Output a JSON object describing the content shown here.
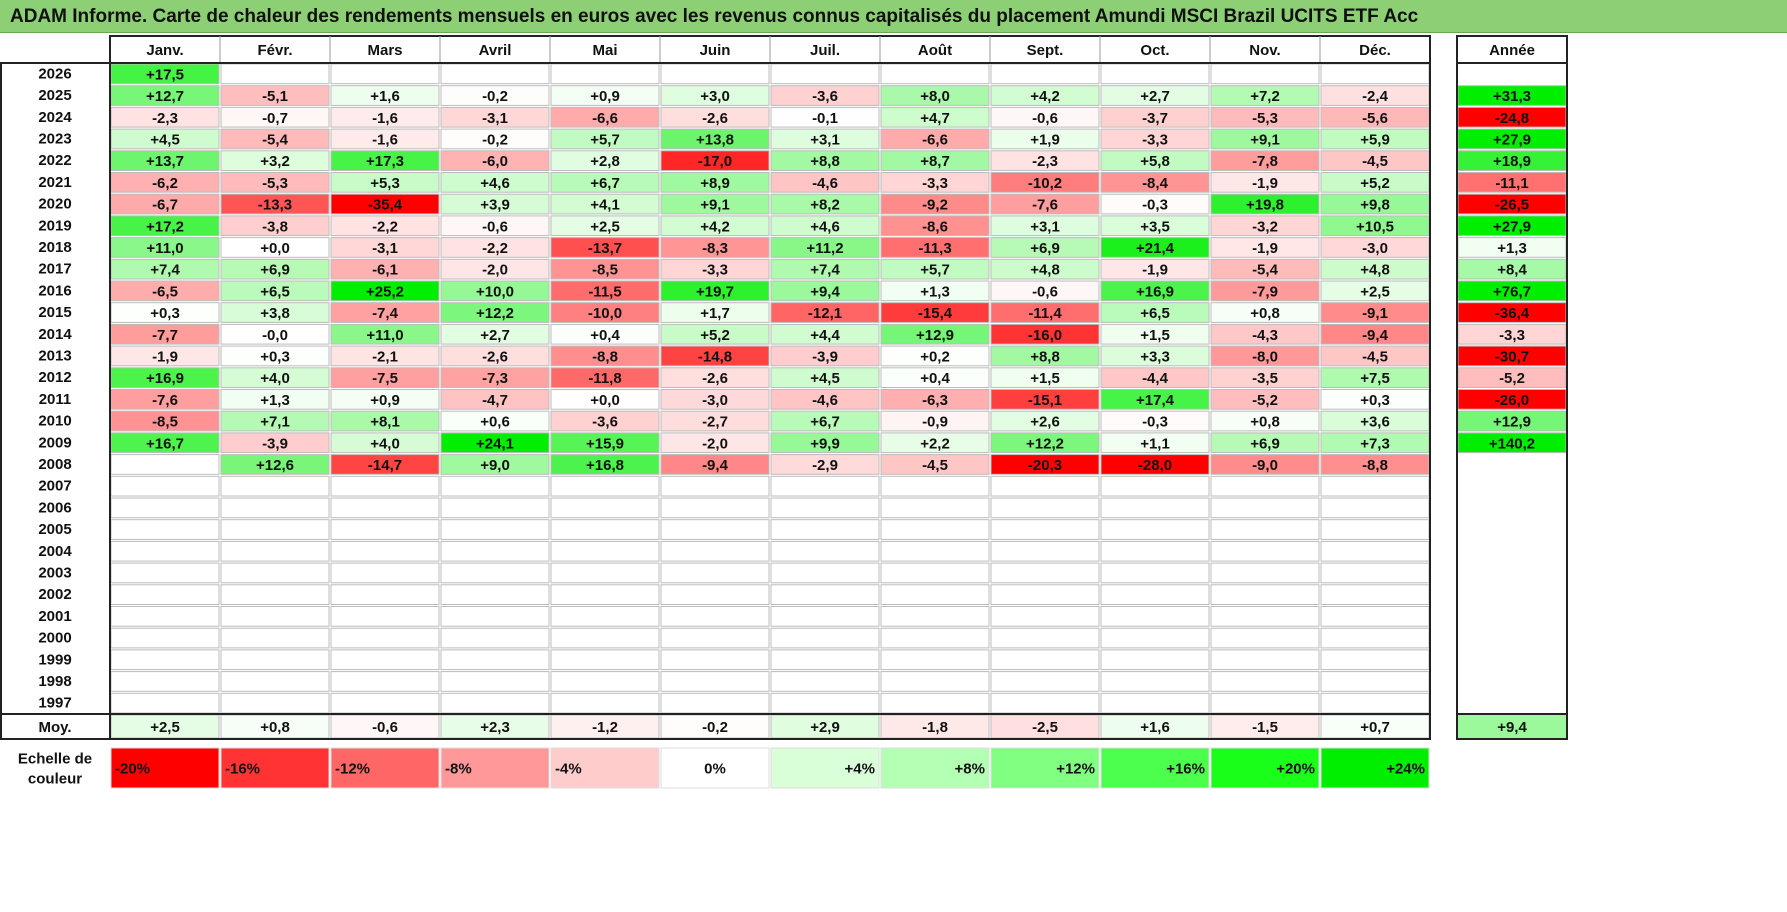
{
  "title": "ADAM Informe. Carte de chaleur des rendements mensuels en euros avec les revenus connus capitalisés du placement Amundi MSCI Brazil UCITS ETF Acc",
  "chart_data": {
    "type": "heatmap",
    "months": [
      "Janv.",
      "Févr.",
      "Mars",
      "Avril",
      "Mai",
      "Juin",
      "Juil.",
      "Août",
      "Sept.",
      "Oct.",
      "Nov.",
      "Déc."
    ],
    "year_column_label": "Année",
    "years": [
      "2026",
      "2025",
      "2024",
      "2023",
      "2022",
      "2021",
      "2020",
      "2019",
      "2018",
      "2017",
      "2016",
      "2015",
      "2014",
      "2013",
      "2012",
      "2011",
      "2010",
      "2009",
      "2008",
      "2007",
      "2006",
      "2005",
      "2004",
      "2003",
      "2002",
      "2001",
      "2000",
      "1999",
      "1998",
      "1997"
    ],
    "values": [
      [
        "+17,5",
        null,
        null,
        null,
        null,
        null,
        null,
        null,
        null,
        null,
        null,
        null
      ],
      [
        "+12,7",
        "-5,1",
        "+1,6",
        "-0,2",
        "+0,9",
        "+3,0",
        "-3,6",
        "+8,0",
        "+4,2",
        "+2,7",
        "+7,2",
        "-2,4"
      ],
      [
        "-2,3",
        "-0,7",
        "-1,6",
        "-3,1",
        "-6,6",
        "-2,6",
        "-0,1",
        "+4,7",
        "-0,6",
        "-3,7",
        "-5,3",
        "-5,6"
      ],
      [
        "+4,5",
        "-5,4",
        "-1,6",
        "-0,2",
        "+5,7",
        "+13,8",
        "+3,1",
        "-6,6",
        "+1,9",
        "-3,3",
        "+9,1",
        "+5,9"
      ],
      [
        "+13,7",
        "+3,2",
        "+17,3",
        "-6,0",
        "+2,8",
        "-17,0",
        "+8,8",
        "+8,7",
        "-2,3",
        "+5,8",
        "-7,8",
        "-4,5"
      ],
      [
        "-6,2",
        "-5,3",
        "+5,3",
        "+4,6",
        "+6,7",
        "+8,9",
        "-4,6",
        "-3,3",
        "-10,2",
        "-8,4",
        "-1,9",
        "+5,2"
      ],
      [
        "-6,7",
        "-13,3",
        "-35,4",
        "+3,9",
        "+4,1",
        "+9,1",
        "+8,2",
        "-9,2",
        "-7,6",
        "-0,3",
        "+19,8",
        "+9,8"
      ],
      [
        "+17,2",
        "-3,8",
        "-2,2",
        "-0,6",
        "+2,5",
        "+4,2",
        "+4,6",
        "-8,6",
        "+3,1",
        "+3,5",
        "-3,2",
        "+10,5"
      ],
      [
        "+11,0",
        "+0,0",
        "-3,1",
        "-2,2",
        "-13,7",
        "-8,3",
        "+11,2",
        "-11,3",
        "+6,9",
        "+21,4",
        "-1,9",
        "-3,0"
      ],
      [
        "+7,4",
        "+6,9",
        "-6,1",
        "-2,0",
        "-8,5",
        "-3,3",
        "+7,4",
        "+5,7",
        "+4,8",
        "-1,9",
        "-5,4",
        "+4,8"
      ],
      [
        "-6,5",
        "+6,5",
        "+25,2",
        "+10,0",
        "-11,5",
        "+19,7",
        "+9,4",
        "+1,3",
        "-0,6",
        "+16,9",
        "-7,9",
        "+2,5"
      ],
      [
        "+0,3",
        "+3,8",
        "-7,4",
        "+12,2",
        "-10,0",
        "+1,7",
        "-12,1",
        "-15,4",
        "-11,4",
        "+6,5",
        "+0,8",
        "-9,1"
      ],
      [
        "-7,7",
        "-0,0",
        "+11,0",
        "+2,7",
        "+0,4",
        "+5,2",
        "+4,4",
        "+12,9",
        "-16,0",
        "+1,5",
        "-4,3",
        "-9,4"
      ],
      [
        "-1,9",
        "+0,3",
        "-2,1",
        "-2,6",
        "-8,8",
        "-14,8",
        "-3,9",
        "+0,2",
        "+8,8",
        "+3,3",
        "-8,0",
        "-4,5"
      ],
      [
        "+16,9",
        "+4,0",
        "-7,5",
        "-7,3",
        "-11,8",
        "-2,6",
        "+4,5",
        "+0,4",
        "+1,5",
        "-4,4",
        "-3,5",
        "+7,5"
      ],
      [
        "-7,6",
        "+1,3",
        "+0,9",
        "-4,7",
        "+0,0",
        "-3,0",
        "-4,6",
        "-6,3",
        "-15,1",
        "+17,4",
        "-5,2",
        "+0,3"
      ],
      [
        "-8,5",
        "+7,1",
        "+8,1",
        "+0,6",
        "-3,6",
        "-2,7",
        "+6,7",
        "-0,9",
        "+2,6",
        "-0,3",
        "+0,8",
        "+3,6"
      ],
      [
        "+16,7",
        "-3,9",
        "+4,0",
        "+24,1",
        "+15,9",
        "-2,0",
        "+9,9",
        "+2,2",
        "+12,2",
        "+1,1",
        "+6,9",
        "+7,3"
      ],
      [
        null,
        "+12,6",
        "-14,7",
        "+9,0",
        "+16,8",
        "-9,4",
        "-2,9",
        "-4,5",
        "-20,3",
        "-28,0",
        "-9,0",
        "-8,8"
      ],
      [
        null,
        null,
        null,
        null,
        null,
        null,
        null,
        null,
        null,
        null,
        null,
        null
      ],
      [
        null,
        null,
        null,
        null,
        null,
        null,
        null,
        null,
        null,
        null,
        null,
        null
      ],
      [
        null,
        null,
        null,
        null,
        null,
        null,
        null,
        null,
        null,
        null,
        null,
        null
      ],
      [
        null,
        null,
        null,
        null,
        null,
        null,
        null,
        null,
        null,
        null,
        null,
        null
      ],
      [
        null,
        null,
        null,
        null,
        null,
        null,
        null,
        null,
        null,
        null,
        null,
        null
      ],
      [
        null,
        null,
        null,
        null,
        null,
        null,
        null,
        null,
        null,
        null,
        null,
        null
      ],
      [
        null,
        null,
        null,
        null,
        null,
        null,
        null,
        null,
        null,
        null,
        null,
        null
      ],
      [
        null,
        null,
        null,
        null,
        null,
        null,
        null,
        null,
        null,
        null,
        null,
        null
      ],
      [
        null,
        null,
        null,
        null,
        null,
        null,
        null,
        null,
        null,
        null,
        null,
        null
      ],
      [
        null,
        null,
        null,
        null,
        null,
        null,
        null,
        null,
        null,
        null,
        null,
        null
      ],
      [
        null,
        null,
        null,
        null,
        null,
        null,
        null,
        null,
        null,
        null,
        null,
        null
      ]
    ],
    "annual": [
      null,
      "+31,3",
      "-24,8",
      "+27,9",
      "+18,9",
      "-11,1",
      "-26,5",
      "+27,9",
      "+1,3",
      "+8,4",
      "+76,7",
      "-36,4",
      "-3,3",
      "-30,7",
      "-5,2",
      "-26,0",
      "+12,9",
      "+140,2",
      null,
      null,
      null,
      null,
      null,
      null,
      null,
      null,
      null,
      null,
      null,
      null
    ],
    "average_label": "Moy.",
    "averages": [
      "+2,5",
      "+0,8",
      "-0,6",
      "+2,3",
      "-1,2",
      "-0,2",
      "+2,9",
      "-1,8",
      "-2,5",
      "+1,6",
      "-1,5",
      "+0,7"
    ],
    "average_annual": "+9,4",
    "scale_label": [
      "Echelle de",
      "couleur"
    ],
    "scale": [
      {
        "label": "-20%",
        "value": -20,
        "color": "#ff0000"
      },
      {
        "label": "-16%",
        "value": -16,
        "color": "#ff3333"
      },
      {
        "label": "-12%",
        "value": -12,
        "color": "#ff6666"
      },
      {
        "label": "-8%",
        "value": -8,
        "color": "#ff9999"
      },
      {
        "label": "-4%",
        "value": -4,
        "color": "#ffcccc"
      },
      {
        "label": "0%",
        "value": 0,
        "color": "#ffffff"
      },
      {
        "label": "+4%",
        "value": 4,
        "color": "#d9ffd9"
      },
      {
        "label": "+8%",
        "value": 8,
        "color": "#b3ffb3"
      },
      {
        "label": "+12%",
        "value": 12,
        "color": "#80ff80"
      },
      {
        "label": "+16%",
        "value": 16,
        "color": "#4dff4d"
      },
      {
        "label": "+20%",
        "value": 20,
        "color": "#1aff1a"
      },
      {
        "label": "+24%",
        "value": 24,
        "color": "#00ee00"
      }
    ]
  }
}
